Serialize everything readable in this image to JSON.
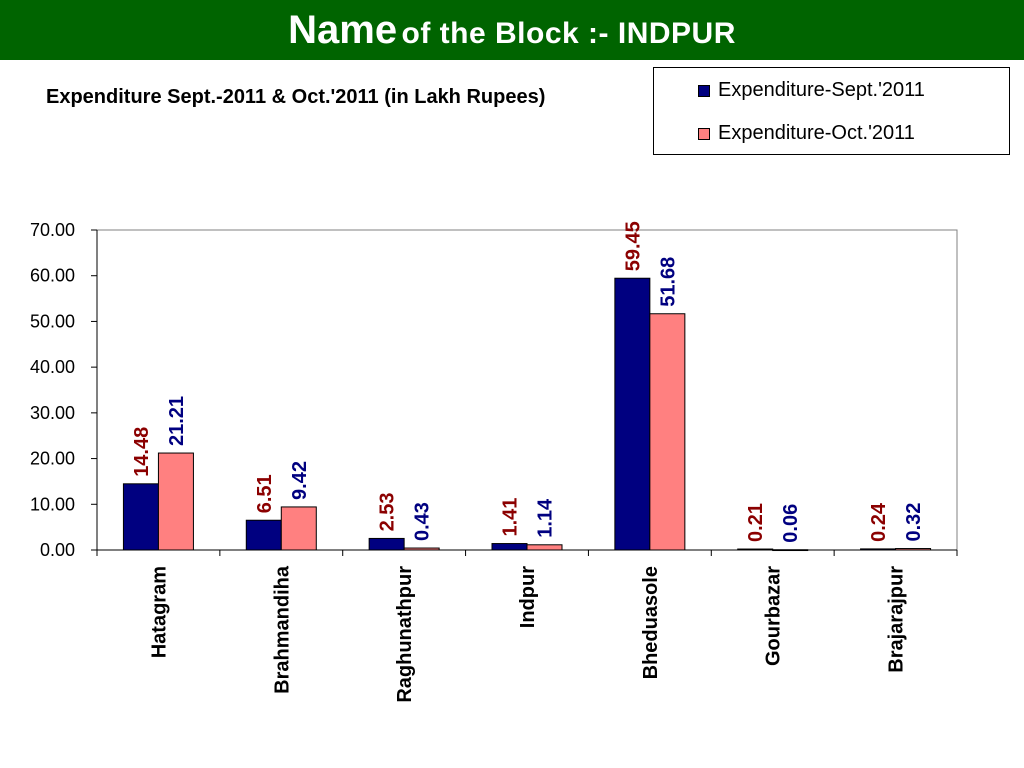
{
  "header": {
    "title_main": "Name",
    "title_rest": "of the Block :- INDPUR"
  },
  "colors": {
    "banner": "#006400",
    "series_sept": "#000080",
    "series_oct": "#FF8080",
    "label_sept": "#8B0000",
    "label_oct": "#000080"
  },
  "chart_data": {
    "type": "bar",
    "title": "Expenditure Sept.-2011 & Oct.'2011 (in Lakh Rupees)",
    "xlabel": "",
    "ylabel": "",
    "ylim": [
      0,
      70
    ],
    "yticks": [
      "0.00",
      "10.00",
      "20.00",
      "30.00",
      "40.00",
      "50.00",
      "60.00",
      "70.00"
    ],
    "ytick_values": [
      0,
      10,
      20,
      30,
      40,
      50,
      60,
      70
    ],
    "grid": false,
    "legend_position": "top-right",
    "categories": [
      "Hatagram",
      "Brahmandiha",
      "Raghunathpur",
      "Indpur",
      "Bheduasole",
      "Gourbazar",
      "Brajarajpur"
    ],
    "series": [
      {
        "name": "Expenditure-Sept.'2011",
        "values": [
          14.48,
          6.51,
          2.53,
          1.41,
          59.45,
          0.21,
          0.24
        ],
        "labels": [
          "14.48",
          "6.51",
          "2.53",
          "1.41",
          "59.45",
          "0.21",
          "0.24"
        ]
      },
      {
        "name": "Expenditure-Oct.'2011",
        "values": [
          21.21,
          9.42,
          0.43,
          1.14,
          51.68,
          0.06,
          0.32
        ],
        "labels": [
          "21.21",
          "9.42",
          "0.43",
          "1.14",
          "51.68",
          "0.06",
          "0.32"
        ]
      }
    ]
  }
}
